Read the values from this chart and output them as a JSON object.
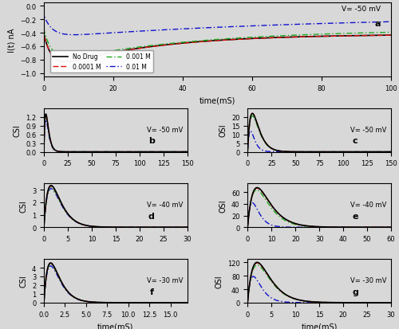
{
  "panel_a": {
    "xlabel": "time(mS)",
    "ylabel": "I(t) nA",
    "xlim": [
      0,
      100
    ],
    "ylim": [
      -1.05,
      0.05
    ],
    "yticks": [
      0,
      -0.2,
      -0.4,
      -0.6,
      -0.8,
      -1.0
    ],
    "label": "a",
    "title": "V= -50 mV"
  },
  "panel_b": {
    "ylabel": "CSI",
    "xlim": [
      0,
      150
    ],
    "ylim": [
      0,
      1.5
    ],
    "yticks": [
      0,
      0.3,
      0.6,
      0.9,
      1.2
    ],
    "label": "b",
    "title": "V= -50 mV"
  },
  "panel_c": {
    "ylabel": "OSI",
    "xlim": [
      0,
      150
    ],
    "ylim": [
      0,
      25
    ],
    "yticks": [
      0,
      5,
      10,
      15,
      20
    ],
    "label": "c",
    "title": "V= -50 mV"
  },
  "panel_d": {
    "ylabel": "CSI",
    "xlim": [
      0,
      30
    ],
    "ylim": [
      0,
      3.5
    ],
    "yticks": [
      0,
      1,
      2,
      3
    ],
    "label": "d",
    "title": "V= -40 mV"
  },
  "panel_e": {
    "ylabel": "OSI",
    "xlim": [
      0,
      60
    ],
    "ylim": [
      0,
      75
    ],
    "yticks": [
      0,
      20,
      40,
      60
    ],
    "label": "e",
    "title": "V= -40 mV"
  },
  "panel_f": {
    "ylabel": "CSI",
    "xlabel": "time(mS)",
    "xlim": [
      0,
      17
    ],
    "ylim": [
      0,
      5
    ],
    "yticks": [
      0,
      1,
      2,
      3,
      4
    ],
    "label": "f",
    "title": "V= -30 mV"
  },
  "panel_g": {
    "ylabel": "OSI",
    "xlabel": "time(mS)",
    "xlim": [
      0,
      30
    ],
    "ylim": [
      0,
      130
    ],
    "yticks": [
      0,
      40,
      80,
      120
    ],
    "label": "g",
    "title": "V= -30 mV"
  },
  "colors": [
    "#000000",
    "#dd1111",
    "#22aa22",
    "#1111cc"
  ],
  "bg_color": "#d8d8d8",
  "legend_labels": [
    "No Drug",
    "0.0001 M",
    "0.001 M",
    "0.01 M"
  ]
}
